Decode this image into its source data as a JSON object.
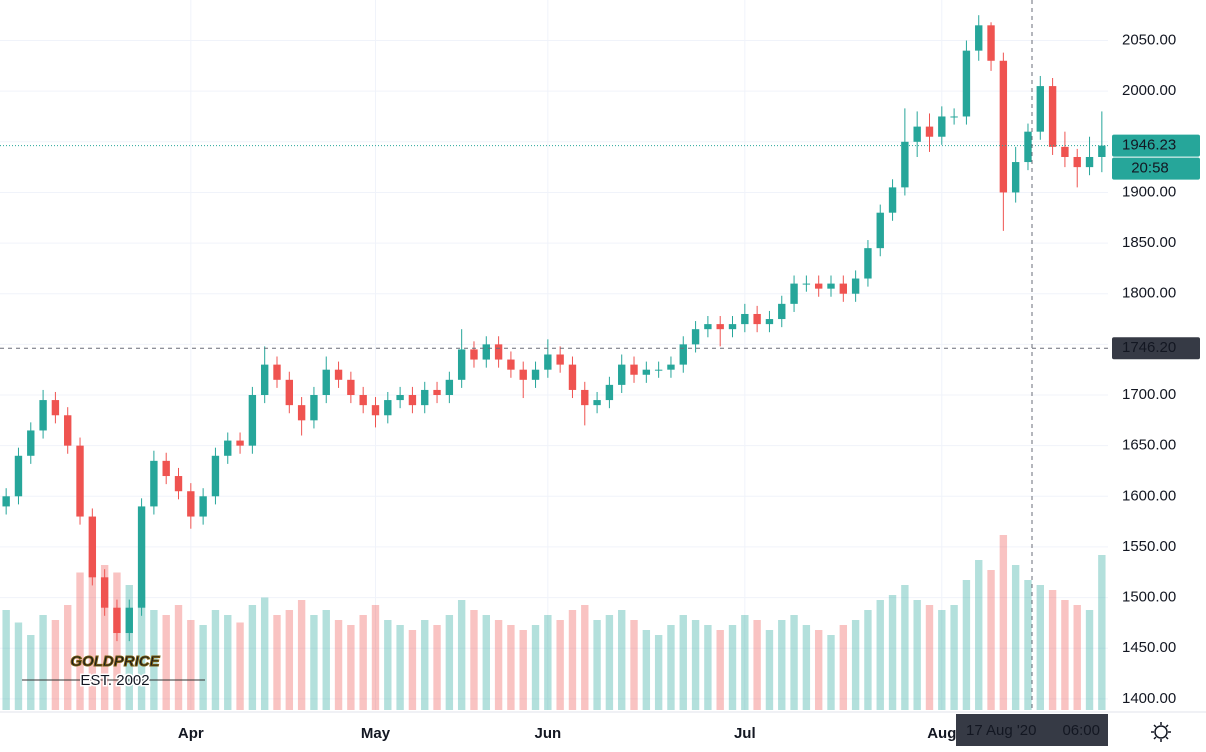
{
  "chart_data": {
    "type": "candlestick",
    "categories": [
      null,
      null,
      null,
      null,
      null,
      null,
      null,
      null,
      null,
      null,
      null,
      null,
      null,
      null,
      null,
      "Apr",
      null,
      null,
      null,
      null,
      null,
      null,
      null,
      null,
      null,
      null,
      null,
      null,
      null,
      null,
      "May",
      null,
      null,
      null,
      null,
      null,
      null,
      null,
      null,
      null,
      null,
      null,
      null,
      null,
      "Jun",
      null,
      null,
      null,
      null,
      null,
      null,
      null,
      null,
      null,
      null,
      null,
      null,
      null,
      null,
      null,
      "Jul",
      null,
      null,
      null,
      null,
      null,
      null,
      null,
      null,
      null,
      null,
      null,
      null,
      null,
      null,
      null,
      "Aug",
      null,
      null,
      null,
      null,
      null,
      null,
      null,
      null,
      null,
      null,
      null,
      null,
      null
    ],
    "open": [
      1590,
      1600,
      1640,
      1665,
      1695,
      1680,
      1650,
      1580,
      1520,
      1490,
      1465,
      1490,
      1590,
      1635,
      1620,
      1605,
      1580,
      1600,
      1640,
      1655,
      1650,
      1700,
      1730,
      1715,
      1690,
      1675,
      1700,
      1725,
      1715,
      1700,
      1690,
      1680,
      1695,
      1700,
      1690,
      1705,
      1700,
      1715,
      1745,
      1735,
      1750,
      1735,
      1725,
      1715,
      1725,
      1740,
      1730,
      1705,
      1690,
      1695,
      1710,
      1730,
      1720,
      1725,
      1725,
      1730,
      1750,
      1765,
      1770,
      1765,
      1770,
      1780,
      1770,
      1775,
      1790,
      1810,
      1810,
      1805,
      1810,
      1800,
      1815,
      1845,
      1880,
      1905,
      1950,
      1965,
      1955,
      1975,
      1975,
      2040,
      2065,
      2030,
      1900,
      1930,
      1960,
      2005,
      1945,
      1935,
      1925,
      1935
    ],
    "high": [
      1608,
      1648,
      1673,
      1705,
      1703,
      1688,
      1658,
      1588,
      1528,
      1498,
      1498,
      1598,
      1645,
      1643,
      1628,
      1613,
      1608,
      1648,
      1663,
      1663,
      1708,
      1748,
      1738,
      1723,
      1698,
      1708,
      1738,
      1733,
      1723,
      1708,
      1698,
      1703,
      1708,
      1708,
      1713,
      1713,
      1723,
      1765,
      1753,
      1758,
      1758,
      1743,
      1733,
      1733,
      1755,
      1748,
      1738,
      1713,
      1703,
      1718,
      1740,
      1738,
      1733,
      1733,
      1738,
      1758,
      1773,
      1778,
      1778,
      1778,
      1790,
      1788,
      1783,
      1798,
      1818,
      1818,
      1818,
      1818,
      1818,
      1823,
      1853,
      1888,
      1913,
      1983,
      1980,
      1978,
      1985,
      1983,
      2050,
      2075,
      2068,
      2038,
      1945,
      1968,
      2015,
      2013,
      1960,
      1943,
      1955,
      1980
    ],
    "low": [
      1582,
      1592,
      1632,
      1657,
      1672,
      1642,
      1572,
      1512,
      1482,
      1457,
      1457,
      1482,
      1582,
      1612,
      1597,
      1568,
      1572,
      1592,
      1632,
      1642,
      1642,
      1692,
      1707,
      1682,
      1660,
      1667,
      1692,
      1707,
      1692,
      1682,
      1668,
      1672,
      1687,
      1682,
      1682,
      1692,
      1692,
      1707,
      1727,
      1727,
      1727,
      1717,
      1697,
      1707,
      1717,
      1722,
      1697,
      1670,
      1682,
      1687,
      1702,
      1712,
      1712,
      1717,
      1717,
      1722,
      1742,
      1757,
      1748,
      1757,
      1762,
      1762,
      1762,
      1767,
      1782,
      1802,
      1797,
      1797,
      1792,
      1792,
      1807,
      1837,
      1872,
      1897,
      1935,
      1940,
      1947,
      1967,
      1967,
      2030,
      2020,
      1862,
      1890,
      1922,
      1952,
      1937,
      1925,
      1905,
      1917,
      1920
    ],
    "close": [
      1600,
      1640,
      1665,
      1695,
      1680,
      1650,
      1580,
      1520,
      1490,
      1465,
      1490,
      1590,
      1635,
      1620,
      1605,
      1580,
      1600,
      1640,
      1655,
      1650,
      1700,
      1730,
      1715,
      1690,
      1675,
      1700,
      1725,
      1715,
      1700,
      1690,
      1680,
      1695,
      1700,
      1690,
      1705,
      1700,
      1715,
      1745,
      1735,
      1750,
      1735,
      1725,
      1715,
      1725,
      1740,
      1730,
      1705,
      1690,
      1695,
      1710,
      1730,
      1720,
      1725,
      1725,
      1730,
      1750,
      1765,
      1770,
      1765,
      1770,
      1780,
      1770,
      1775,
      1790,
      1810,
      1810,
      1805,
      1810,
      1800,
      1815,
      1845,
      1880,
      1905,
      1950,
      1965,
      1955,
      1975,
      1975,
      2040,
      2065,
      2030,
      1900,
      1930,
      1960,
      2005,
      1945,
      1935,
      1925,
      1935,
      1946.23
    ],
    "volume": [
      40,
      35,
      30,
      38,
      36,
      42,
      55,
      60,
      58,
      55,
      50,
      48,
      40,
      38,
      42,
      36,
      34,
      40,
      38,
      35,
      42,
      45,
      38,
      40,
      44,
      38,
      40,
      36,
      34,
      38,
      42,
      36,
      34,
      32,
      36,
      34,
      38,
      44,
      40,
      38,
      36,
      34,
      32,
      34,
      38,
      36,
      40,
      42,
      36,
      38,
      40,
      36,
      32,
      30,
      34,
      38,
      36,
      34,
      32,
      34,
      38,
      36,
      32,
      36,
      38,
      34,
      32,
      30,
      34,
      36,
      40,
      44,
      46,
      50,
      44,
      42,
      40,
      42,
      52,
      60,
      56,
      70,
      58,
      52,
      50,
      48,
      44,
      42,
      40,
      62
    ],
    "up_color": "#26a69a",
    "down_color": "#ef5350",
    "ylim": [
      1389,
      2090
    ],
    "yticks": [
      {
        "value": 1400,
        "label": "1400.00"
      },
      {
        "value": 1450,
        "label": "1450.00"
      },
      {
        "value": 1500,
        "label": "1500.00"
      },
      {
        "value": 1550,
        "label": "1550.00"
      },
      {
        "value": 1600,
        "label": "1600.00"
      },
      {
        "value": 1650,
        "label": "1650.00"
      },
      {
        "value": 1700,
        "label": "1700.00"
      },
      {
        "value": 1750,
        "label": "1750.00"
      },
      {
        "value": 1800,
        "label": "1800.00"
      },
      {
        "value": 1850,
        "label": "1850.00"
      },
      {
        "value": 1900,
        "label": "1900.00"
      },
      {
        "value": 1950,
        "label": "1950.00"
      },
      {
        "value": 2000,
        "label": "2000.00"
      },
      {
        "value": 2050,
        "label": "2050.00"
      }
    ],
    "volume_ylim": [
      0,
      100
    ],
    "grid": true,
    "crosshair": {
      "price": {
        "value": 1746.2,
        "label": "1746.20"
      },
      "date": "17 Aug '20",
      "time": "06:00"
    },
    "countdown": "20:58",
    "watermark": {
      "title": "GOLDPRICE",
      "subtitle": "EST. 2002"
    }
  }
}
